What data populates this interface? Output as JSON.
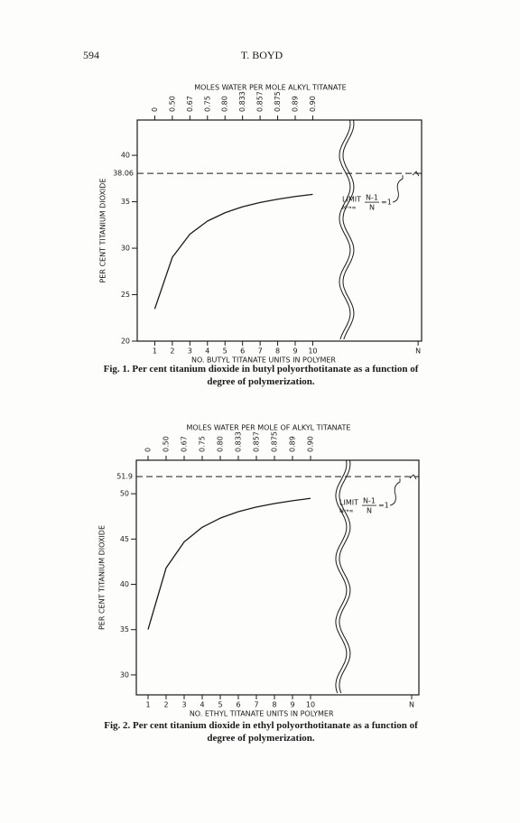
{
  "page_number": "594",
  "running_head": "T. BOYD",
  "chart_data": [
    {
      "type": "line",
      "top_axis_label": "MOLES WATER PER MOLE ALKYL TITANATE",
      "y_label": "PER CENT TITANIUM DIOXIDE",
      "x_label": "NO. BUTYL TITANATE UNITS IN POLYMER",
      "caption_label": "Fig. 1.",
      "caption": "Per cent titanium dioxide in butyl polyorthotitanate as a function of degree of polymerization.",
      "x": [
        1,
        2,
        3,
        4,
        5,
        6,
        7,
        8,
        9,
        10
      ],
      "series": [
        {
          "color": "#1a1a1a",
          "values": [
            23.47,
            29.02,
            31.51,
            32.92,
            33.82,
            34.46,
            34.92,
            35.28,
            35.57,
            35.8
          ]
        }
      ],
      "xlim": [
        0,
        16.2
      ],
      "xticks": [
        1,
        2,
        3,
        4,
        5,
        6,
        7,
        8,
        9,
        10,
        {
          "value": 16,
          "label": "N"
        }
      ],
      "top_ticks": [
        {
          "value": 1,
          "label": "0"
        },
        {
          "value": 2,
          "label": "0.50"
        },
        {
          "value": 3,
          "label": "0.67"
        },
        {
          "value": 4,
          "label": "0.75"
        },
        {
          "value": 5,
          "label": "0.80"
        },
        {
          "value": 6,
          "label": "0.833"
        },
        {
          "value": 7,
          "label": "0.857"
        },
        {
          "value": 8,
          "label": "0.875"
        },
        {
          "value": 9,
          "label": "0.89"
        },
        {
          "value": 10,
          "label": "0.90"
        }
      ],
      "ylim": [
        20,
        43.8
      ],
      "yticks": [
        20,
        25,
        30,
        35,
        40
      ],
      "limit": 38.06,
      "annotation": {
        "text": "LIMIT",
        "numerator": "N-1",
        "denominator": "N",
        "result": "=1",
        "subscript": "N→∞"
      }
    },
    {
      "type": "line",
      "top_axis_label": "MOLES WATER PER MOLE OF ALKYL TITANATE",
      "y_label": "PER CENT TITANIUM DIOXIDE",
      "x_label": "NO. ETHYL TITANATE UNITS IN POLYMER",
      "caption_label": "Fig. 2.",
      "caption": "Per cent titanium dioxide in ethyl polyorthotitanate as a function of degree of polymerization.",
      "x": [
        1,
        2,
        3,
        4,
        5,
        6,
        7,
        8,
        9,
        10
      ],
      "series": [
        {
          "color": "#1a1a1a",
          "values": [
            35.01,
            41.81,
            44.69,
            46.3,
            47.31,
            48.02,
            48.53,
            48.92,
            49.23,
            49.49
          ]
        }
      ],
      "xlim": [
        0.35,
        16
      ],
      "xticks": [
        1,
        2,
        3,
        4,
        5,
        6,
        7,
        8,
        9,
        10,
        {
          "value": 15.6,
          "label": "N"
        }
      ],
      "top_ticks": [
        {
          "value": 1,
          "label": "0"
        },
        {
          "value": 2,
          "label": "0.50"
        },
        {
          "value": 3,
          "label": "0.67"
        },
        {
          "value": 4,
          "label": "0.75"
        },
        {
          "value": 5,
          "label": "0.80"
        },
        {
          "value": 6,
          "label": "0.833"
        },
        {
          "value": 7,
          "label": "0.857"
        },
        {
          "value": 8,
          "label": "0.875"
        },
        {
          "value": 9,
          "label": "0.89"
        },
        {
          "value": 10,
          "label": "0.90"
        }
      ],
      "ylim": [
        27.8,
        53.7
      ],
      "yticks": [
        30,
        35,
        40,
        45,
        50
      ],
      "limit": 51.9,
      "annotation": {
        "text": "LIMIT",
        "numerator": "N-1",
        "denominator": "N",
        "result": "=1",
        "subscript": "N→∞"
      }
    }
  ]
}
